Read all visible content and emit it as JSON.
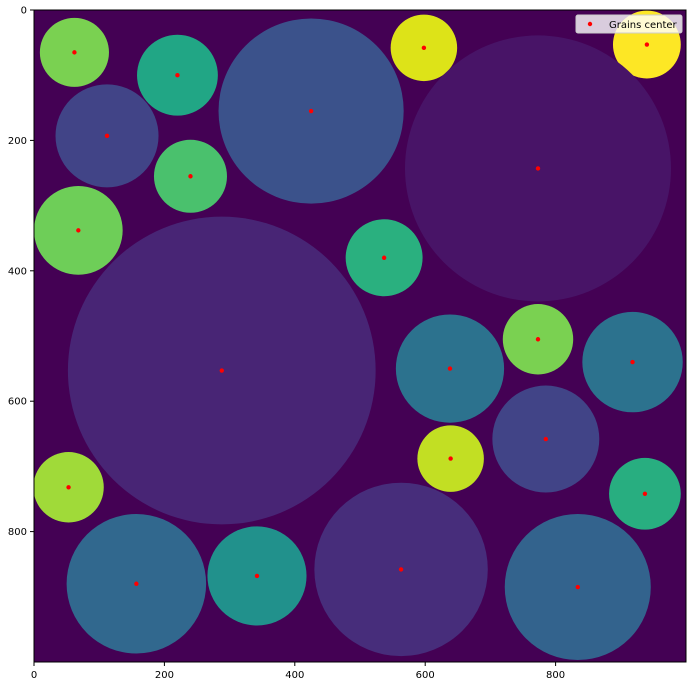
{
  "chart_data": {
    "type": "scatter",
    "title": "",
    "xlabel": "",
    "ylabel": "",
    "xlim": [
      0,
      1000
    ],
    "ylim": [
      1000,
      0
    ],
    "y_inverted": true,
    "x_ticks": [
      0,
      200,
      400,
      600,
      800
    ],
    "y_ticks": [
      0,
      200,
      400,
      600,
      800
    ],
    "background_color": "#440154",
    "grid": false,
    "legend": {
      "position": "top-right",
      "entries": [
        {
          "label": "Grains center",
          "color": "#ff0000",
          "marker": "dot"
        }
      ]
    },
    "grains": [
      {
        "cx": 62,
        "cy": 65,
        "r": 53,
        "color": "#7ad151"
      },
      {
        "cx": 220,
        "cy": 100,
        "r": 62,
        "color": "#21a685"
      },
      {
        "cx": 425,
        "cy": 155,
        "r": 142,
        "color": "#3b528b"
      },
      {
        "cx": 598,
        "cy": 58,
        "r": 51,
        "color": "#dde318"
      },
      {
        "cx": 940,
        "cy": 53,
        "r": 52,
        "color": "#fde725"
      },
      {
        "cx": 112,
        "cy": 193,
        "r": 79,
        "color": "#414487"
      },
      {
        "cx": 240,
        "cy": 255,
        "r": 56,
        "color": "#4ac16d"
      },
      {
        "cx": 773,
        "cy": 243,
        "r": 204,
        "color": "#481467"
      },
      {
        "cx": 68,
        "cy": 338,
        "r": 68,
        "color": "#6ece58"
      },
      {
        "cx": 537,
        "cy": 380,
        "r": 59,
        "color": "#2ab07f"
      },
      {
        "cx": 288,
        "cy": 553,
        "r": 236,
        "color": "#482575"
      },
      {
        "cx": 773,
        "cy": 505,
        "r": 54,
        "color": "#7ad151"
      },
      {
        "cx": 638,
        "cy": 550,
        "r": 83,
        "color": "#2c728e"
      },
      {
        "cx": 918,
        "cy": 540,
        "r": 77,
        "color": "#2c728e"
      },
      {
        "cx": 785,
        "cy": 658,
        "r": 82,
        "color": "#414487"
      },
      {
        "cx": 639,
        "cy": 688,
        "r": 51,
        "color": "#c2df23"
      },
      {
        "cx": 53,
        "cy": 732,
        "r": 54,
        "color": "#a0da39"
      },
      {
        "cx": 937,
        "cy": 742,
        "r": 55,
        "color": "#28ae80"
      },
      {
        "cx": 157,
        "cy": 880,
        "r": 107,
        "color": "#31688e"
      },
      {
        "cx": 342,
        "cy": 868,
        "r": 76,
        "color": "#21918c"
      },
      {
        "cx": 563,
        "cy": 858,
        "r": 133,
        "color": "#472d7b"
      },
      {
        "cx": 834,
        "cy": 885,
        "r": 112,
        "color": "#33638d"
      }
    ]
  }
}
